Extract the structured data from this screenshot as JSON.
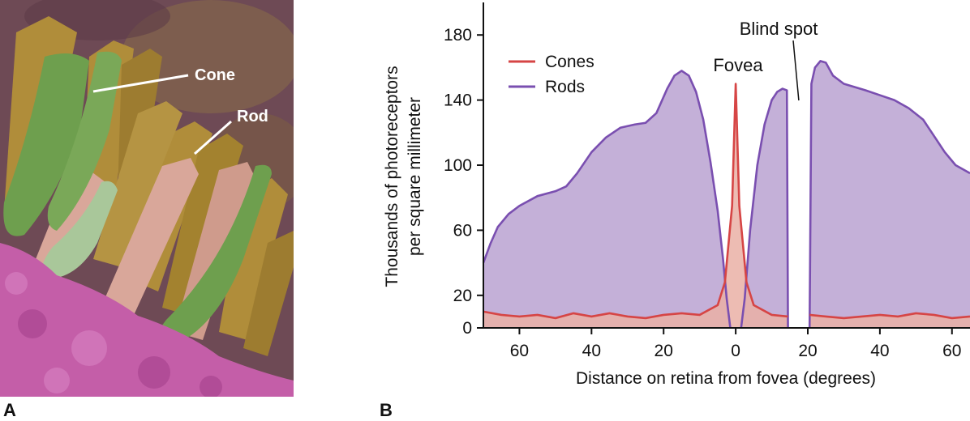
{
  "panel_a": {
    "letter": "A",
    "labels": {
      "cone": "Cone",
      "rod": "Rod"
    }
  },
  "panel_b": {
    "letter": "B"
  },
  "colors": {
    "cones_line": "#d64545",
    "cones_fill": "#eab0a6",
    "rods_line": "#7a4fb0",
    "rods_fill": "#c4b0d8",
    "cone_cell": "#6e9f4e",
    "rod_cell": "#b08d3a",
    "pink_cell": "#d9a79a",
    "tissue": "#c45ea8",
    "background": "#6e4a55"
  },
  "chart_data": {
    "type": "area",
    "title": "",
    "xlabel": "Distance on retina from fovea (degrees)",
    "ylabel": "Thousands of photoreceptors per square millimeter",
    "xlim": [
      -70,
      65
    ],
    "ylim": [
      0,
      200
    ],
    "xticks": [
      -60,
      -40,
      -20,
      0,
      20,
      40,
      60
    ],
    "xtick_labels": [
      "60",
      "40",
      "20",
      "0",
      "20",
      "40",
      "60"
    ],
    "yticks": [
      0,
      20,
      60,
      100,
      140,
      180
    ],
    "ytick_labels": [
      "0",
      "20",
      "60",
      "100",
      "140",
      "180"
    ],
    "legend_placement": "top-left",
    "annotations": {
      "fovea": "Fovea",
      "blind_spot": "Blind spot"
    },
    "blind_spot_range": [
      15.5,
      19.5
    ],
    "series": [
      {
        "name": "Cones",
        "segments": [
          {
            "x": [
              -70,
              -65,
              -60,
              -55,
              -50,
              -45,
              -40,
              -35,
              -30,
              -25,
              -20,
              -15,
              -10,
              -5,
              -3,
              -1,
              0,
              1,
              3,
              5,
              10,
              14.5
            ],
            "y": [
              10,
              8,
              7,
              8,
              6,
              9,
              7,
              9,
              7,
              6,
              8,
              9,
              8,
              14,
              28,
              75,
              150,
              75,
              28,
              14,
              8,
              7
            ]
          },
          {
            "x": [
              20.5,
              25,
              30,
              35,
              40,
              45,
              50,
              55,
              60,
              65
            ],
            "y": [
              8,
              7,
              6,
              7,
              8,
              7,
              9,
              8,
              6,
              7
            ]
          }
        ]
      },
      {
        "name": "Rods",
        "segments": [
          {
            "x": [
              -70,
              -68,
              -66,
              -63,
              -60,
              -55,
              -50,
              -47,
              -44,
              -40,
              -36,
              -32,
              -28,
              -25,
              -22,
              -19,
              -17,
              -15,
              -13,
              -11,
              -9,
              -7,
              -5,
              -3.5,
              -2.5,
              -1.5
            ],
            "y": [
              40,
              52,
              62,
              70,
              75,
              81,
              84,
              87,
              95,
              108,
              117,
              123,
              125,
              126,
              132,
              147,
              155,
              158,
              155,
              145,
              128,
              102,
              72,
              42,
              18,
              0
            ]
          },
          {
            "x": [
              1.5,
              2.5,
              4,
              6,
              8,
              10,
              11.5,
              13,
              14.2,
              14.5
            ],
            "y": [
              0,
              18,
              60,
              100,
              125,
              140,
              145,
              147,
              146,
              0
            ]
          },
          {
            "x": [
              20.5,
              21,
              22,
              23.5,
              25,
              27,
              30,
              33,
              36,
              40,
              44,
              48,
              52,
              55,
              58,
              61,
              65
            ],
            "y": [
              0,
              150,
              160,
              164,
              163,
              155,
              150,
              148,
              146,
              143,
              140,
              135,
              128,
              118,
              108,
              100,
              95
            ]
          }
        ]
      }
    ]
  }
}
